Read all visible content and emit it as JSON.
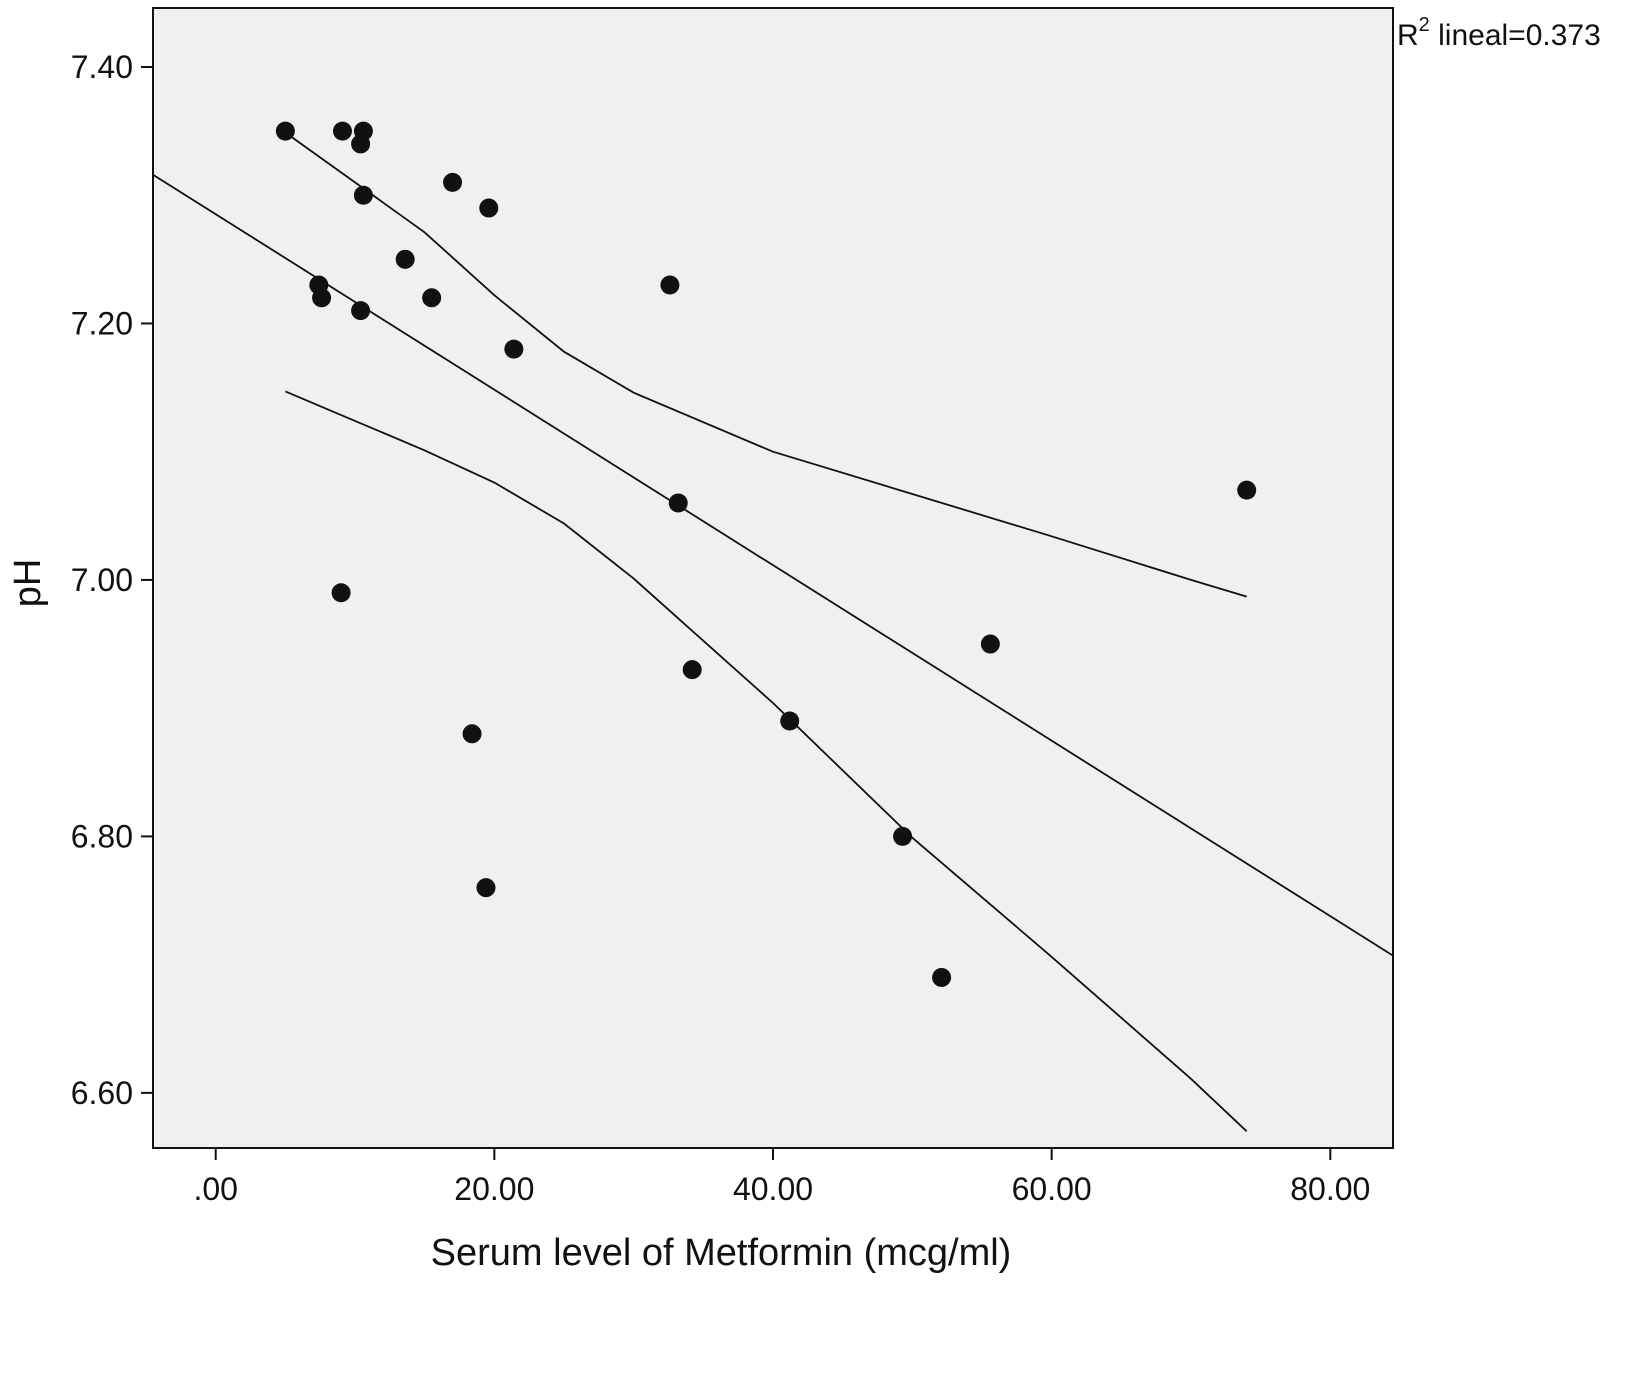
{
  "chart_data": {
    "type": "scatter",
    "title": "",
    "xlabel": "Serum level of Metformin  (mcg/ml)",
    "ylabel": "pH",
    "xlim": [
      -4.5,
      84.5
    ],
    "ylim": [
      6.557,
      7.446
    ],
    "x_ticks": [
      0,
      20,
      40,
      60,
      80
    ],
    "x_tick_labels": [
      ".00",
      "20.00",
      "40.00",
      "60.00",
      "80.00"
    ],
    "y_ticks": [
      6.6,
      6.8,
      7.0,
      7.2,
      7.4
    ],
    "y_tick_labels": [
      "6.60",
      "6.80",
      "7.00",
      "7.20",
      "7.40"
    ],
    "grid": false,
    "background_color": "#f0f0f0",
    "point_color": "#111111",
    "line_color": "#111111",
    "r2_annotation": {
      "prefix": "R",
      "superscript": "2",
      "suffix": " lineal=0.373"
    },
    "points": [
      {
        "x": 5.0,
        "y": 7.35
      },
      {
        "x": 9.1,
        "y": 7.35
      },
      {
        "x": 10.6,
        "y": 7.35
      },
      {
        "x": 10.4,
        "y": 7.34
      },
      {
        "x": 10.6,
        "y": 7.3
      },
      {
        "x": 17.0,
        "y": 7.31
      },
      {
        "x": 19.6,
        "y": 7.29
      },
      {
        "x": 13.6,
        "y": 7.25
      },
      {
        "x": 7.4,
        "y": 7.23
      },
      {
        "x": 7.6,
        "y": 7.22
      },
      {
        "x": 15.5,
        "y": 7.22
      },
      {
        "x": 10.4,
        "y": 7.21
      },
      {
        "x": 21.4,
        "y": 7.18
      },
      {
        "x": 32.6,
        "y": 7.23
      },
      {
        "x": 33.2,
        "y": 7.06
      },
      {
        "x": 74.0,
        "y": 7.07
      },
      {
        "x": 9.0,
        "y": 6.99
      },
      {
        "x": 55.6,
        "y": 6.95
      },
      {
        "x": 34.2,
        "y": 6.93
      },
      {
        "x": 41.2,
        "y": 6.89
      },
      {
        "x": 18.4,
        "y": 6.88
      },
      {
        "x": 49.3,
        "y": 6.8
      },
      {
        "x": 19.4,
        "y": 6.76
      },
      {
        "x": 52.1,
        "y": 6.69
      }
    ],
    "fit_line": [
      [
        -4.5,
        7.316
      ],
      [
        84.5,
        6.707
      ]
    ],
    "ci_upper": [
      [
        5.5,
        7.345
      ],
      [
        10,
        7.31
      ],
      [
        15,
        7.271
      ],
      [
        20,
        7.222
      ],
      [
        25,
        7.178
      ],
      [
        30,
        7.146
      ],
      [
        40,
        7.1
      ],
      [
        50,
        7.067
      ],
      [
        60,
        7.034
      ],
      [
        70,
        7.0
      ],
      [
        74,
        6.987
      ]
    ],
    "ci_lower": [
      [
        5.0,
        7.147
      ],
      [
        10,
        7.124
      ],
      [
        15,
        7.101
      ],
      [
        20,
        7.076
      ],
      [
        25,
        7.044
      ],
      [
        30,
        7.001
      ],
      [
        40,
        6.904
      ],
      [
        50,
        6.799
      ],
      [
        60,
        6.706
      ],
      [
        70,
        6.611
      ],
      [
        74,
        6.57
      ]
    ]
  }
}
